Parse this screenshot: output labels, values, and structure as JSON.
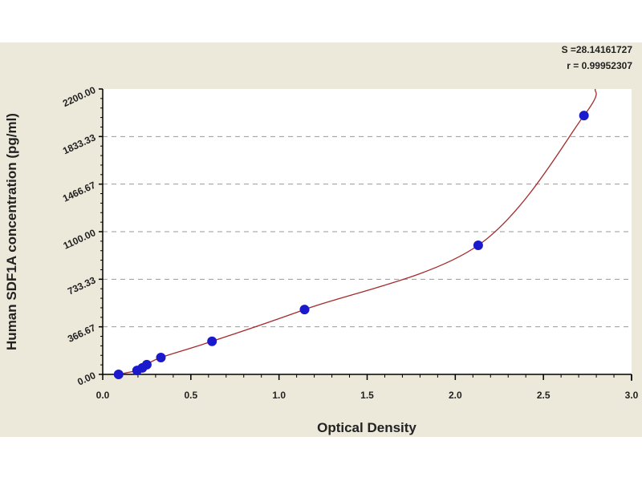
{
  "chart_data": {
    "type": "scatter",
    "title": "",
    "xlabel": "Optical Density",
    "ylabel": "Human SDF1A concentration (pg/ml)",
    "xlim": [
      0,
      3.0
    ],
    "ylim": [
      0,
      2200
    ],
    "x_ticks": [
      "0.0",
      "0.5",
      "1.0",
      "1.5",
      "2.0",
      "2.5",
      "3.0"
    ],
    "y_ticks": [
      "0.00",
      "366.67",
      "733.33",
      "1100.00",
      "1466.67",
      "1833.33",
      "2200.00"
    ],
    "grid": "horizontal dashed",
    "stats": [
      "S =28.14161727",
      "r = 0.99952307"
    ],
    "points": [
      {
        "x": 0.09,
        "y": 0
      },
      {
        "x": 0.195,
        "y": 30
      },
      {
        "x": 0.225,
        "y": 50
      },
      {
        "x": 0.25,
        "y": 75
      },
      {
        "x": 0.33,
        "y": 130
      },
      {
        "x": 0.62,
        "y": 255
      },
      {
        "x": 1.145,
        "y": 500
      },
      {
        "x": 2.13,
        "y": 995
      },
      {
        "x": 2.73,
        "y": 1995
      }
    ],
    "point_color": "#1a1acc",
    "curve_color": "#a52a2a",
    "grid_color": "#999999"
  }
}
